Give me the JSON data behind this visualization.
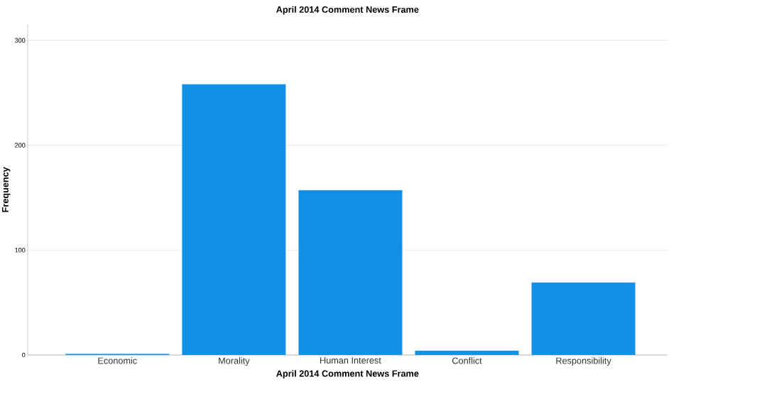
{
  "chart_data": {
    "type": "bar",
    "title": "April 2014 Comment News Frame",
    "xlabel": "April 2014 Comment News Frame",
    "ylabel": "Frequency",
    "categories": [
      "Economic",
      "Morality",
      "Human Interest",
      "Conflict",
      "Responsibility"
    ],
    "values": [
      1,
      258,
      157,
      4,
      69
    ],
    "color": "#1290e6",
    "ylim": [
      0,
      315
    ],
    "yticks": [
      0,
      100,
      200,
      300
    ],
    "grid": "y"
  }
}
